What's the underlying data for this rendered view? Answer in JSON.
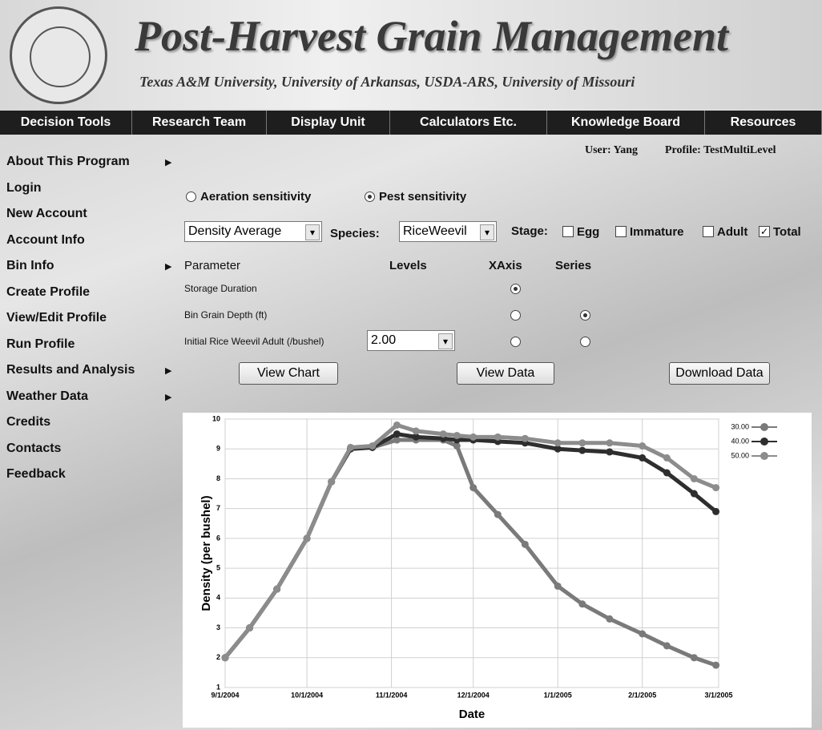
{
  "header": {
    "title": "Post-Harvest Grain Management",
    "subtitle": "Texas A&M University, University of Arkansas, USDA-ARS, University of Missouri"
  },
  "nav": [
    "Decision Tools",
    "Research Team",
    "Display Unit",
    "Calculators Etc.",
    "Knowledge Board",
    "Resources"
  ],
  "sidebar": [
    {
      "label": "About This Program",
      "has_submenu": true
    },
    {
      "label": "Login",
      "has_submenu": false
    },
    {
      "label": "New Account",
      "has_submenu": false
    },
    {
      "label": "Account Info",
      "has_submenu": false
    },
    {
      "label": "Bin Info",
      "has_submenu": true
    },
    {
      "label": "Create Profile",
      "has_submenu": false
    },
    {
      "label": "View/Edit Profile",
      "has_submenu": false
    },
    {
      "label": "Run Profile",
      "has_submenu": false
    },
    {
      "label": "Results and Analysis",
      "has_submenu": true
    },
    {
      "label": "Weather Data",
      "has_submenu": true
    },
    {
      "label": "Credits",
      "has_submenu": false
    },
    {
      "label": "Contacts",
      "has_submenu": false
    },
    {
      "label": "Feedback",
      "has_submenu": false
    }
  ],
  "user": {
    "user": "User: Yang",
    "profile": "Profile: TestMultiLevel"
  },
  "mode": {
    "options": [
      "Aeration sensitivity",
      "Pest sensitivity"
    ],
    "selected": 1
  },
  "controls": {
    "measure": "Density Average",
    "species_label": "Species:",
    "species": "RiceWeevil",
    "stage_label": "Stage:",
    "stages": [
      {
        "label": "Egg",
        "checked": false
      },
      {
        "label": "Immature",
        "checked": false
      },
      {
        "label": "Adult",
        "checked": false
      },
      {
        "label": "Total",
        "checked": true
      }
    ]
  },
  "parameters": {
    "headers": [
      "Parameter",
      "Levels",
      "XAxis",
      "Series"
    ],
    "rows": [
      {
        "name": "Storage Duration",
        "xaxis": true
      },
      {
        "name": "Bin Grain Depth (ft)",
        "xaxis": false,
        "series": true
      },
      {
        "name": "Initial Rice Weevil Adult (/bushel)",
        "level": "2.00",
        "xaxis": false,
        "series": false
      }
    ]
  },
  "buttons": [
    "View Chart",
    "View Data",
    "Download Data"
  ],
  "chart_data": {
    "type": "line",
    "x_label": "Date",
    "y_label": "Density (per bushel)",
    "x": [
      "9/1/2004",
      "9/10/2004",
      "9/20/2004",
      "10/1/2004",
      "10/10/2004",
      "10/17/2004",
      "10/25/2004",
      "11/3/2004",
      "11/10/2004",
      "11/20/2004",
      "11/25/2004",
      "12/1/2004",
      "12/10/2004",
      "12/20/2004",
      "1/1/2005",
      "1/10/2005",
      "1/20/2005",
      "2/1/2005",
      "2/10/2005",
      "2/20/2005",
      "2/28/2005"
    ],
    "xlim": [
      "9/1/2004",
      "3/1/2005"
    ],
    "xticks": [
      "9/1/2004",
      "10/1/2004",
      "11/1/2004",
      "12/1/2004",
      "1/1/2005",
      "2/1/2005",
      "3/1/2005"
    ],
    "ylim": [
      1,
      10
    ],
    "yticks": [
      1,
      2,
      3,
      4,
      5,
      6,
      7,
      8,
      9,
      10
    ],
    "grid": true,
    "legend": "right",
    "series": [
      {
        "name": "30.00",
        "color": "#7a7a7a",
        "values": [
          2,
          3,
          4.3,
          6,
          7.9,
          9.0,
          9.05,
          9.3,
          9.3,
          9.3,
          9.1,
          7.7,
          6.8,
          5.8,
          4.4,
          3.8,
          3.3,
          2.8,
          2.4,
          2.0,
          1.75
        ]
      },
      {
        "name": "40.00",
        "color": "#2e2e2e",
        "values": [
          2,
          3,
          4.3,
          6,
          7.9,
          9.0,
          9.05,
          9.5,
          9.4,
          9.35,
          9.3,
          9.3,
          9.25,
          9.2,
          9.0,
          8.95,
          8.9,
          8.7,
          8.2,
          7.5,
          6.9
        ]
      },
      {
        "name": "50.00",
        "color": "#8c8c8c",
        "values": [
          2,
          3,
          4.3,
          6,
          7.9,
          9.05,
          9.1,
          9.8,
          9.6,
          9.5,
          9.45,
          9.4,
          9.4,
          9.35,
          9.2,
          9.2,
          9.2,
          9.1,
          8.7,
          8.0,
          7.7
        ]
      }
    ]
  }
}
